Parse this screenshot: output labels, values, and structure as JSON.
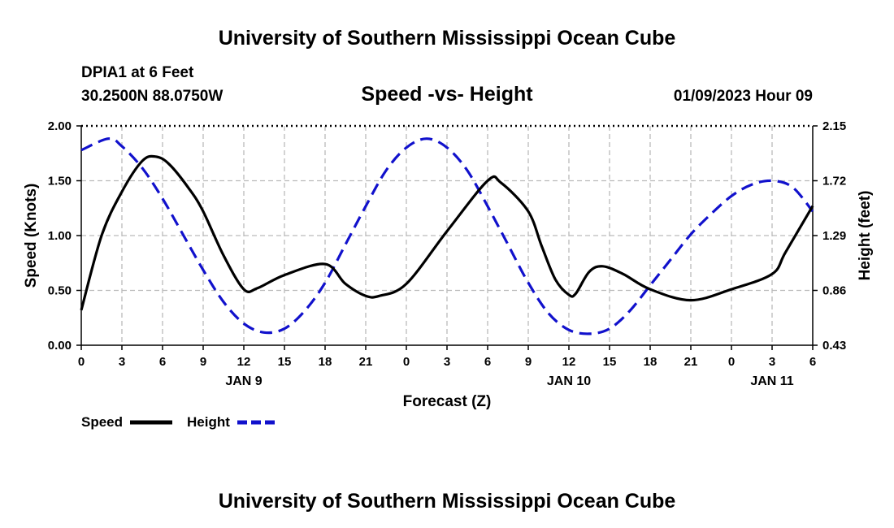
{
  "header": {
    "title": "University of Southern Mississippi Ocean Cube",
    "station": "DPIA1 at 6 Feet",
    "coords": "30.2500N  88.0750W",
    "subtitle": "Speed -vs- Height",
    "datetime": "01/09/2023 Hour 09"
  },
  "footer": {
    "title": "University of Southern Mississippi Ocean Cube"
  },
  "chart_data": {
    "type": "line",
    "title": "Speed -vs- Height",
    "xlabel": "Forecast (Z)",
    "ylabel": "Speed (Knots)",
    "y2label": "Height (feet)",
    "xlim": [
      0,
      54
    ],
    "ylim": [
      0,
      2.0
    ],
    "y2lim": [
      0.43,
      2.15
    ],
    "x_ticks": [
      0,
      3,
      6,
      9,
      12,
      15,
      18,
      21,
      24,
      27,
      30,
      33,
      36,
      39,
      42,
      45,
      48,
      51,
      54
    ],
    "x_tick_labels": [
      "0",
      "3",
      "6",
      "9",
      "12",
      "15",
      "18",
      "21",
      "0",
      "3",
      "6",
      "9",
      "12",
      "15",
      "18",
      "21",
      "0",
      "3",
      "6"
    ],
    "date_labels": [
      {
        "x": 12,
        "label": "JAN 9"
      },
      {
        "x": 36,
        "label": "JAN 10"
      },
      {
        "x": 51,
        "label": "JAN 11"
      }
    ],
    "y_ticks": [
      0,
      0.5,
      1.0,
      1.5,
      2.0
    ],
    "y_tick_labels": [
      "0.00",
      "0.50",
      "1.00",
      "1.50",
      "2.00"
    ],
    "y2_ticks": [
      0.43,
      0.86,
      1.29,
      1.72,
      2.15
    ],
    "y2_tick_labels": [
      "0.43",
      "0.86",
      "1.29",
      "1.72",
      "2.15"
    ],
    "grid": true,
    "legend_position": "bottom-left",
    "series": [
      {
        "name": "Speed",
        "axis": "left",
        "color": "#000000",
        "dash": "solid",
        "x": [
          0,
          1.5,
          3,
          4.5,
          5.5,
          6.5,
          8,
          9,
          10.5,
          12,
          13,
          15,
          18,
          19.5,
          21,
          22,
          24,
          27,
          30,
          31,
          33,
          34,
          35,
          36,
          36.5,
          37.5,
          38.5,
          40,
          42,
          45,
          48,
          51,
          52,
          54
        ],
        "values": [
          0.32,
          1.0,
          1.4,
          1.68,
          1.72,
          1.65,
          1.42,
          1.22,
          0.82,
          0.51,
          0.52,
          0.64,
          0.74,
          0.56,
          0.45,
          0.45,
          0.56,
          1.04,
          1.5,
          1.48,
          1.22,
          0.9,
          0.6,
          0.46,
          0.47,
          0.67,
          0.72,
          0.65,
          0.51,
          0.41,
          0.51,
          0.65,
          0.85,
          1.27
        ]
      },
      {
        "name": "Height",
        "axis": "right",
        "color": "#1111cc",
        "dash": "dashed",
        "x": [
          0,
          2,
          3,
          4.5,
          6,
          7.5,
          9,
          10.5,
          12,
          13.5,
          15,
          16.5,
          18,
          19.5,
          21,
          22.5,
          24,
          25.5,
          27,
          28.5,
          30,
          31.5,
          33,
          34.5,
          36,
          37.5,
          39,
          40.5,
          42,
          43.5,
          45,
          46.5,
          48,
          49.5,
          51,
          52.5,
          54
        ],
        "values": [
          1.96,
          2.05,
          1.99,
          1.82,
          1.58,
          1.3,
          1.02,
          0.77,
          0.6,
          0.53,
          0.56,
          0.7,
          0.92,
          1.22,
          1.52,
          1.8,
          1.98,
          2.05,
          1.98,
          1.8,
          1.52,
          1.22,
          0.92,
          0.68,
          0.55,
          0.52,
          0.56,
          0.7,
          0.9,
          1.1,
          1.3,
          1.46,
          1.6,
          1.69,
          1.72,
          1.67,
          1.48
        ]
      }
    ]
  }
}
